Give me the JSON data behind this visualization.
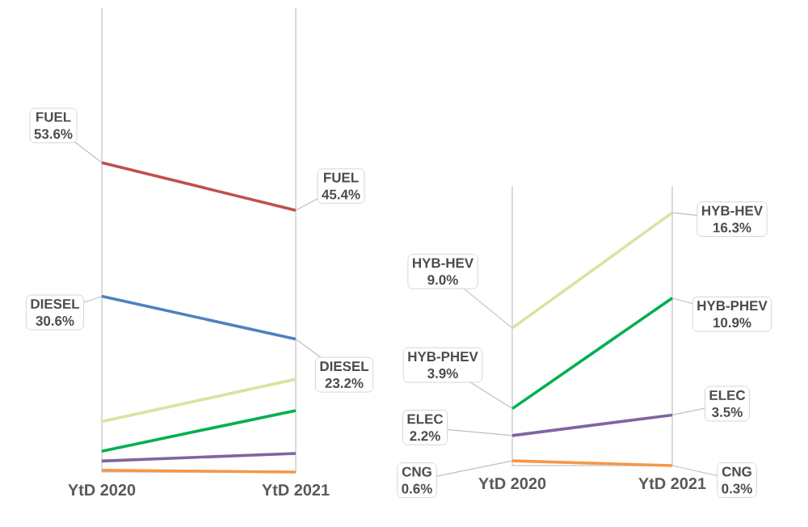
{
  "chart_data": [
    {
      "type": "line",
      "categories": [
        "YtD 2020",
        "YtD 2021"
      ],
      "tick_labels": "x",
      "grid": "x",
      "series": [
        {
          "name": "FUEL",
          "color": "#c0504d",
          "values": [
            53.6,
            45.4
          ],
          "value_labels": [
            "53.6%",
            "45.4%"
          ]
        },
        {
          "name": "DIESEL",
          "color": "#4f81bd",
          "values": [
            30.6,
            23.2
          ],
          "value_labels": [
            "30.6%",
            "23.2%"
          ]
        },
        {
          "color": "#d7e4a0",
          "values": [
            9.0,
            16.3
          ]
        },
        {
          "color": "#00b050",
          "values": [
            3.9,
            10.9
          ]
        },
        {
          "color": "#8064a2",
          "values": [
            2.2,
            3.5
          ]
        },
        {
          "color": "#f79646",
          "values": [
            0.6,
            0.3
          ]
        }
      ]
    },
    {
      "type": "line",
      "categories": [
        "YtD 2020",
        "YtD 2021"
      ],
      "tick_labels": "x",
      "grid": "x",
      "series": [
        {
          "name": "HYB-HEV",
          "color": "#d7e4a0",
          "values": [
            9.0,
            16.3
          ],
          "value_labels": [
            "9.0%",
            "16.3%"
          ]
        },
        {
          "name": "HYB-PHEV",
          "color": "#00b050",
          "values": [
            3.9,
            10.9
          ],
          "value_labels": [
            "3.9%",
            "10.9%"
          ]
        },
        {
          "name": "ELEC",
          "color": "#8064a2",
          "values": [
            2.2,
            3.5
          ],
          "value_labels": [
            "2.2%",
            "3.5%"
          ]
        },
        {
          "name": "CNG",
          "color": "#f79646",
          "values": [
            0.6,
            0.3
          ],
          "value_labels": [
            "0.6%",
            "0.3%"
          ]
        }
      ]
    }
  ]
}
